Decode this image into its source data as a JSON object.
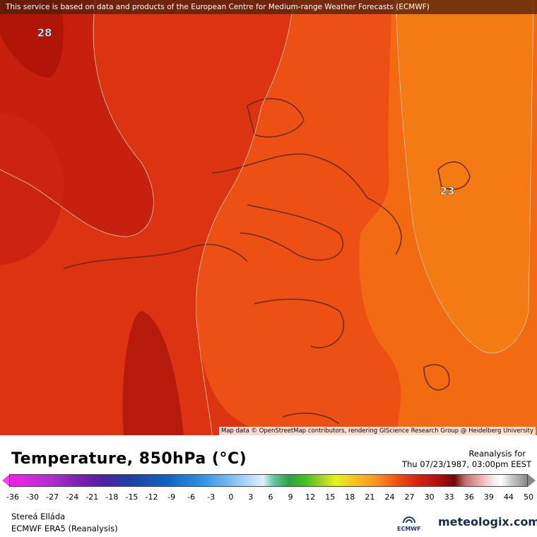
{
  "map": {
    "banner": "This service is based on data and products of the European Centre for Medium-range Weather Forecasts (ECMWF)",
    "contour_labels": [
      28,
      23
    ],
    "attribution": "Map data © OpenStreetMap contributors, rendering GIScience Research Group @ Heidelberg University"
  },
  "legend": {
    "title": "Temperature, 850hPa (°C)",
    "ticks": [
      -36,
      -30,
      -27,
      -24,
      -21,
      -18,
      -15,
      -12,
      -9,
      -6,
      -3,
      0,
      3,
      6,
      9,
      12,
      15,
      18,
      21,
      24,
      27,
      30,
      33,
      36,
      39,
      44,
      50
    ]
  },
  "info": {
    "label": "Reanalysis for",
    "date": "Thu 07/23/1987, 03:00pm EEST"
  },
  "footer": {
    "location": "Stereá Elláda",
    "model": "ECMWF ERA5 (Reanalysis)",
    "logo_left": "ECMWF",
    "logo_right": "meteologix.com"
  }
}
